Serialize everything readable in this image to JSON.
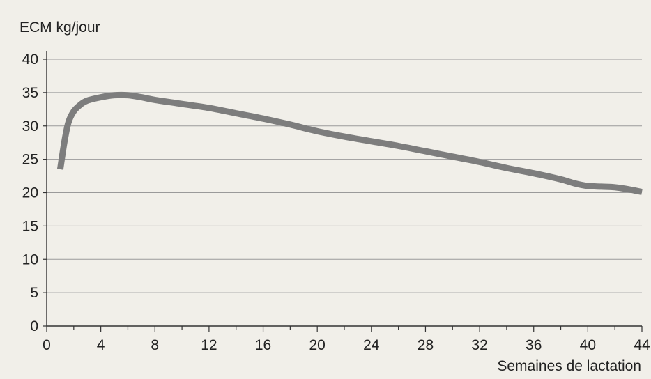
{
  "chart_data": {
    "type": "line",
    "title": "",
    "ylabel": "ECM kg/jour",
    "xlabel": "Semaines de lactation",
    "xlim": [
      0,
      44
    ],
    "ylim": [
      0,
      40
    ],
    "x_ticks": [
      0,
      4,
      8,
      12,
      16,
      20,
      24,
      28,
      32,
      36,
      40,
      44
    ],
    "y_ticks": [
      0,
      5,
      10,
      15,
      20,
      25,
      30,
      35,
      40
    ],
    "grid": "horizontal",
    "legend": "none",
    "series": [
      {
        "color": "#7d7d7d",
        "x": [
          1,
          1.3,
          1.6,
          2,
          2.5,
          3,
          4,
          5,
          6,
          7,
          8,
          10,
          12,
          14,
          16,
          18,
          20,
          22,
          24,
          26,
          28,
          30,
          32,
          34,
          36,
          38,
          39,
          40,
          41,
          42,
          43,
          44
        ],
        "y": [
          23.5,
          27.5,
          30.5,
          32.2,
          33.2,
          33.8,
          34.3,
          34.6,
          34.6,
          34.3,
          33.9,
          33.3,
          32.7,
          31.9,
          31.1,
          30.2,
          29.2,
          28.4,
          27.7,
          27.0,
          26.2,
          25.4,
          24.6,
          23.7,
          22.9,
          22.0,
          21.4,
          21.0,
          20.9,
          20.8,
          20.5,
          20.1
        ]
      }
    ]
  }
}
